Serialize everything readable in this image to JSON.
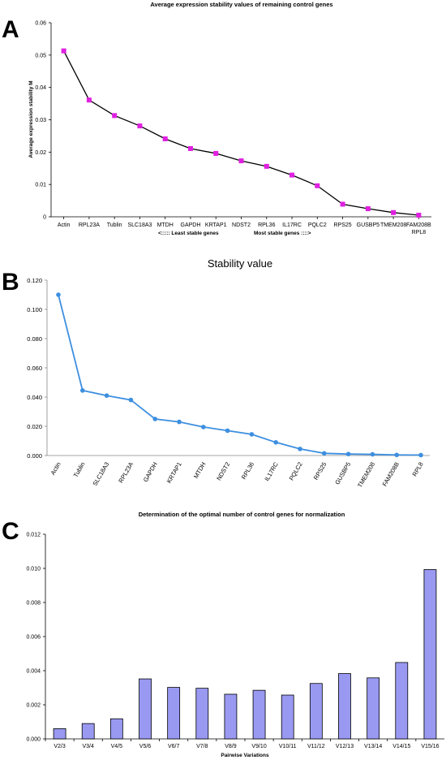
{
  "figure": {
    "panels": [
      "A",
      "B",
      "C"
    ]
  },
  "chart_data": [
    {
      "type": "line",
      "title": "Average expression  stability values of remaining control genes",
      "ylabel": "Average expression stability M",
      "xlabel": "",
      "categories": [
        "Actin",
        "RPL23A",
        "Tublin",
        "SLC18A3",
        "MTDH",
        "GAPDH",
        "KRTAP1",
        "NDST2",
        "RPL36",
        "IL17RC",
        "PQLC2",
        "RPS25",
        "GUSBP5",
        "TMEM208",
        "FAM208B\nRPL8"
      ],
      "values": [
        0.0513,
        0.0361,
        0.0313,
        0.0281,
        0.0241,
        0.0211,
        0.0196,
        0.0173,
        0.0156,
        0.0129,
        0.0096,
        0.0039,
        0.0025,
        0.0013,
        0.0005
      ],
      "ylim": [
        0,
        0.06
      ],
      "yticks": [
        "0",
        "0.01",
        "0.02",
        "0.03",
        "0.04",
        "0.05",
        "0.06"
      ],
      "annotations": [
        "<::::: Least stable genes",
        "Most stable genes ::::>"
      ],
      "line_color": "#000000",
      "marker_color": "#e020e0",
      "grid": false
    },
    {
      "type": "line",
      "title": "Stability value",
      "xlabel": "",
      "ylabel": "",
      "categories": [
        "Actin",
        "Tublin",
        "SLC18A3",
        "RPL23A",
        "GAPDH",
        "KRTAP1",
        "MTDH",
        "NDST2",
        "RPL36",
        "IL17RC",
        "PQLC2",
        "RPS25",
        "GUSBP5",
        "TMEM208",
        "FAM208B",
        "RPL8"
      ],
      "values": [
        0.11,
        0.0445,
        0.041,
        0.038,
        0.025,
        0.023,
        0.0195,
        0.017,
        0.0145,
        0.009,
        0.0045,
        0.0015,
        0.001,
        0.0008,
        0.0004,
        0.0003
      ],
      "ylim": [
        0,
        0.12
      ],
      "yticks": [
        "0.000",
        "0.020",
        "0.040",
        "0.060",
        "0.080",
        "0.100",
        "0.120"
      ],
      "line_color": "#3d8fe0",
      "grid": false
    },
    {
      "type": "bar",
      "title": "Determination of the optimal number of control genes for normalization",
      "xlabel": "Pairwise Variations",
      "ylabel": "",
      "categories": [
        "V2/3",
        "V3/4",
        "V4/5",
        "V5/6",
        "V6/7",
        "V7/8",
        "V8/9",
        "V9/10",
        "V10/11",
        "V11/12",
        "V12/13",
        "V13/14",
        "V14/15",
        "V15/16"
      ],
      "values": [
        0.0006,
        0.0009,
        0.00118,
        0.00352,
        0.00302,
        0.00297,
        0.00262,
        0.00285,
        0.00257,
        0.00325,
        0.00383,
        0.00358,
        0.00448,
        0.00993
      ],
      "ylim": [
        0,
        0.012
      ],
      "yticks": [
        "0.000",
        "0.002",
        "0.004",
        "0.006",
        "0.008",
        "0.010",
        "0.012"
      ],
      "bar_color": "#9999f2",
      "grid": false
    }
  ]
}
